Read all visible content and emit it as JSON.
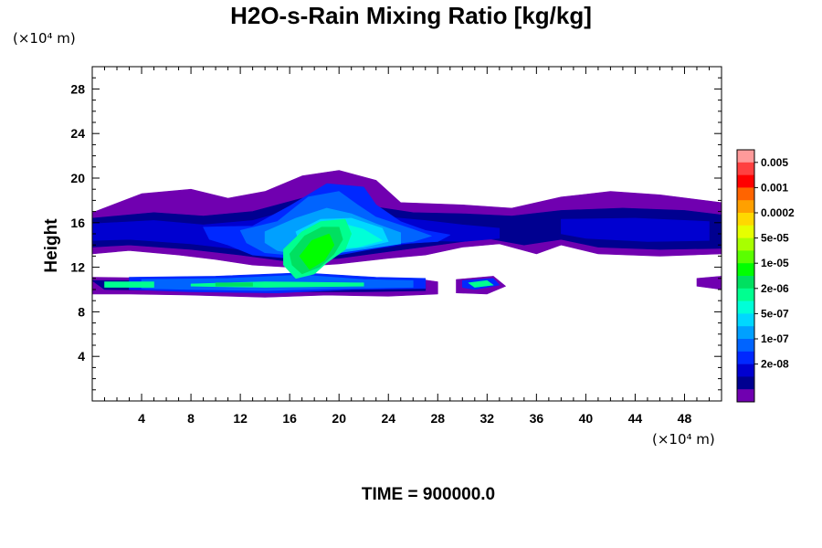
{
  "chart_data": {
    "type": "heatmap",
    "title": "H2O-s-Rain Mixing Ratio [kg/kg]",
    "ylabel": "Height",
    "x_unit_label": "(×10⁴ m)",
    "y_unit_label": "(×10⁴ m)",
    "x_ticks": [
      "4",
      "8",
      "12",
      "16",
      "20",
      "24",
      "28",
      "32",
      "36",
      "40",
      "44",
      "48"
    ],
    "y_ticks": [
      "4",
      "8",
      "12",
      "16",
      "20",
      "24",
      "28"
    ],
    "xlim": [
      0,
      51
    ],
    "ylim": [
      0,
      30
    ],
    "colorbar_labels": [
      "0.005",
      "0.001",
      "0.0002",
      "5e-05",
      "1e-05",
      "2e-06",
      "5e-07",
      "1e-07",
      "2e-08"
    ],
    "colorbar_colors": [
      "#ff9a9a",
      "#ff4040",
      "#ff0000",
      "#ff6400",
      "#ffa000",
      "#ffd800",
      "#e6ff00",
      "#a8ff00",
      "#5aff00",
      "#00ff00",
      "#00e060",
      "#00ff90",
      "#00ffd8",
      "#00d8ff",
      "#00a0ff",
      "#0064ff",
      "#0028ff",
      "#0000d0",
      "#000090",
      "#7000b0"
    ],
    "footer": "TIME = 900000.0",
    "regions": [
      {
        "level": 0,
        "pts": [
          [
            0,
            16.9
          ],
          [
            4,
            18.6
          ],
          [
            8,
            19.0
          ],
          [
            11,
            18.2
          ],
          [
            14,
            18.8
          ],
          [
            17,
            20.2
          ],
          [
            20,
            20.7
          ],
          [
            23,
            19.8
          ],
          [
            25,
            17.8
          ],
          [
            30,
            17.6
          ],
          [
            34,
            17.3
          ],
          [
            38,
            18.3
          ],
          [
            42,
            18.8
          ],
          [
            46,
            18.5
          ],
          [
            51,
            17.8
          ],
          [
            51,
            13.2
          ],
          [
            46,
            13.0
          ],
          [
            41,
            13.2
          ],
          [
            38,
            14.0
          ],
          [
            36,
            13.2
          ],
          [
            33,
            14.1
          ],
          [
            30,
            13.8
          ],
          [
            27,
            13.1
          ],
          [
            24,
            12.8
          ],
          [
            20,
            12.3
          ],
          [
            16,
            12.0
          ],
          [
            13,
            12.2
          ],
          [
            10,
            12.7
          ],
          [
            7,
            13.1
          ],
          [
            3,
            13.5
          ],
          [
            0,
            13.2
          ]
        ]
      },
      {
        "level": 0,
        "pts": [
          [
            0,
            11.1
          ],
          [
            8,
            11.0
          ],
          [
            16,
            11.3
          ],
          [
            22,
            10.9
          ],
          [
            26,
            11.0
          ],
          [
            28,
            10.7
          ],
          [
            28,
            9.6
          ],
          [
            24,
            9.4
          ],
          [
            19,
            9.5
          ],
          [
            14,
            9.3
          ],
          [
            8,
            9.5
          ],
          [
            3,
            9.6
          ],
          [
            0,
            9.6
          ]
        ]
      },
      {
        "level": 0,
        "pts": [
          [
            29.5,
            10.9
          ],
          [
            32.5,
            11.2
          ],
          [
            33.5,
            10.3
          ],
          [
            32,
            9.6
          ],
          [
            29.5,
            9.7
          ]
        ]
      },
      {
        "level": 0,
        "pts": [
          [
            49,
            11.0
          ],
          [
            51,
            11.2
          ],
          [
            51,
            10.0
          ],
          [
            49,
            10.3
          ]
        ]
      },
      {
        "level": 1,
        "pts": [
          [
            0,
            16.4
          ],
          [
            5,
            16.9
          ],
          [
            9,
            16.6
          ],
          [
            13,
            17.0
          ],
          [
            17,
            18.2
          ],
          [
            20,
            18.6
          ],
          [
            23,
            17.4
          ],
          [
            26,
            16.9
          ],
          [
            30,
            16.8
          ],
          [
            34,
            16.6
          ],
          [
            38,
            17.1
          ],
          [
            43,
            17.3
          ],
          [
            48,
            17.1
          ],
          [
            51,
            16.7
          ],
          [
            51,
            13.7
          ],
          [
            46,
            13.6
          ],
          [
            41,
            13.8
          ],
          [
            38,
            14.5
          ],
          [
            35,
            14.0
          ],
          [
            32,
            14.6
          ],
          [
            28,
            14.0
          ],
          [
            24,
            13.4
          ],
          [
            20,
            12.8
          ],
          [
            16,
            12.5
          ],
          [
            12,
            13.1
          ],
          [
            8,
            13.6
          ],
          [
            3,
            14.0
          ],
          [
            0,
            13.8
          ]
        ]
      },
      {
        "level": 1,
        "pts": [
          [
            0,
            10.8
          ],
          [
            8,
            10.8
          ],
          [
            16,
            11.0
          ],
          [
            22,
            10.6
          ],
          [
            27,
            10.6
          ],
          [
            27,
            9.9
          ],
          [
            22,
            9.8
          ],
          [
            16,
            9.8
          ],
          [
            8,
            9.9
          ],
          [
            1,
            10.0
          ]
        ]
      },
      {
        "level": 2,
        "pts": [
          [
            0,
            15.9
          ],
          [
            5,
            16.2
          ],
          [
            9,
            15.8
          ],
          [
            13,
            16.2
          ],
          [
            17,
            17.4
          ],
          [
            20,
            17.8
          ],
          [
            23,
            16.6
          ],
          [
            27,
            16.2
          ],
          [
            30,
            15.8
          ],
          [
            33,
            15.5
          ],
          [
            33,
            14.6
          ],
          [
            30,
            14.3
          ],
          [
            27,
            14.4
          ],
          [
            24,
            13.8
          ],
          [
            20,
            13.3
          ],
          [
            16,
            13.1
          ],
          [
            12,
            13.6
          ],
          [
            8,
            14.1
          ],
          [
            3,
            14.5
          ],
          [
            0,
            14.4
          ]
        ]
      },
      {
        "level": 2,
        "pts": [
          [
            38,
            16.3
          ],
          [
            44,
            16.4
          ],
          [
            50,
            16.1
          ],
          [
            50,
            14.4
          ],
          [
            45,
            14.3
          ],
          [
            40,
            14.6
          ],
          [
            38,
            15.0
          ]
        ]
      },
      {
        "level": 3,
        "pts": [
          [
            9,
            15.6
          ],
          [
            13,
            15.7
          ],
          [
            16,
            17.5
          ],
          [
            19,
            19.5
          ],
          [
            22,
            19.2
          ],
          [
            23,
            17.6
          ],
          [
            25,
            16.1
          ],
          [
            27,
            15.3
          ],
          [
            29,
            14.9
          ],
          [
            28,
            14.3
          ],
          [
            25,
            14.1
          ],
          [
            22,
            13.5
          ],
          [
            19,
            12.9
          ],
          [
            16,
            12.8
          ],
          [
            13,
            13.1
          ],
          [
            11,
            14.0
          ],
          [
            9.5,
            14.5
          ]
        ]
      },
      {
        "level": 3,
        "pts": [
          [
            3,
            11.1
          ],
          [
            10,
            11.2
          ],
          [
            17,
            11.5
          ],
          [
            23,
            11.1
          ],
          [
            27,
            11.0
          ],
          [
            27,
            10.1
          ],
          [
            21,
            10.0
          ],
          [
            15,
            9.7
          ],
          [
            8,
            9.8
          ],
          [
            3,
            10.0
          ]
        ]
      },
      {
        "level": 3,
        "pts": [
          [
            30,
            10.8
          ],
          [
            32.5,
            11.0
          ],
          [
            33,
            10.4
          ],
          [
            31,
            10.0
          ],
          [
            30,
            10.2
          ]
        ]
      },
      {
        "level": 4,
        "pts": [
          [
            12,
            15.3
          ],
          [
            15,
            16.1
          ],
          [
            17.5,
            18.3
          ],
          [
            20,
            18.8
          ],
          [
            21.5,
            17.6
          ],
          [
            23,
            16.5
          ],
          [
            26,
            15.4
          ],
          [
            27.5,
            14.8
          ],
          [
            26,
            14.3
          ],
          [
            23,
            13.9
          ],
          [
            20,
            13.3
          ],
          [
            17,
            13.0
          ],
          [
            14,
            13.3
          ],
          [
            12.5,
            14.2
          ]
        ]
      },
      {
        "level": 4,
        "pts": [
          [
            4,
            10.9
          ],
          [
            11,
            11.0
          ],
          [
            17,
            11.3
          ],
          [
            22,
            10.9
          ],
          [
            26,
            10.8
          ],
          [
            26,
            10.2
          ],
          [
            20,
            10.1
          ],
          [
            14,
            9.9
          ],
          [
            8,
            10.0
          ],
          [
            4,
            10.1
          ]
        ]
      },
      {
        "level": 5,
        "pts": [
          [
            14,
            15.2
          ],
          [
            16.5,
            16.4
          ],
          [
            19,
            17.3
          ],
          [
            21,
            16.8
          ],
          [
            23,
            15.9
          ],
          [
            25,
            15.1
          ],
          [
            25,
            14.1
          ],
          [
            22.5,
            13.7
          ],
          [
            20,
            13.3
          ],
          [
            17,
            13.1
          ],
          [
            15,
            13.5
          ],
          [
            14,
            14.2
          ]
        ]
      },
      {
        "level": 6,
        "pts": [
          [
            16.5,
            15.2
          ],
          [
            18.5,
            16.3
          ],
          [
            21,
            16.4
          ],
          [
            23.5,
            15.5
          ],
          [
            24,
            14.3
          ],
          [
            22,
            13.8
          ],
          [
            19,
            13.4
          ],
          [
            17,
            13.6
          ]
        ]
      },
      {
        "level": 7,
        "pts": [
          [
            18,
            15.4
          ],
          [
            20,
            16.0
          ],
          [
            22,
            15.4
          ],
          [
            23.5,
            14.4
          ],
          [
            21.5,
            13.8
          ],
          [
            19,
            13.6
          ],
          [
            18,
            14.2
          ]
        ]
      },
      {
        "level": 8,
        "pts": [
          [
            15.5,
            13.6
          ],
          [
            17,
            15.2
          ],
          [
            18.5,
            16.1
          ],
          [
            20.5,
            16.3
          ],
          [
            21,
            15.0
          ],
          [
            20.5,
            13.6
          ],
          [
            19,
            12.4
          ],
          [
            18,
            11.4
          ],
          [
            16.5,
            11.0
          ],
          [
            15.5,
            12.2
          ]
        ]
      },
      {
        "level": 8,
        "pts": [
          [
            1,
            10.7
          ],
          [
            5,
            10.7
          ],
          [
            5,
            10.2
          ],
          [
            1,
            10.2
          ]
        ]
      },
      {
        "level": 8,
        "pts": [
          [
            8,
            10.5
          ],
          [
            14,
            10.7
          ],
          [
            22,
            10.6
          ],
          [
            22,
            10.3
          ],
          [
            14,
            10.2
          ],
          [
            8,
            10.3
          ]
        ]
      },
      {
        "level": 8,
        "pts": [
          [
            30.5,
            10.6
          ],
          [
            32,
            10.8
          ],
          [
            32.5,
            10.4
          ],
          [
            31,
            10.2
          ]
        ]
      },
      {
        "level": 9,
        "pts": [
          [
            16,
            13.2
          ],
          [
            17.2,
            14.8
          ],
          [
            18.6,
            15.6
          ],
          [
            20,
            15.6
          ],
          [
            20.3,
            14.5
          ],
          [
            19.6,
            13.2
          ],
          [
            18.4,
            12.0
          ],
          [
            17,
            11.4
          ],
          [
            16.2,
            12.2
          ]
        ]
      },
      {
        "level": 9,
        "pts": [
          [
            10,
            10.6
          ],
          [
            13,
            10.6
          ],
          [
            13,
            10.3
          ],
          [
            10,
            10.3
          ]
        ]
      },
      {
        "level": 10,
        "pts": [
          [
            16.8,
            13.0
          ],
          [
            17.8,
            14.4
          ],
          [
            19.2,
            15.0
          ],
          [
            19.6,
            14.0
          ],
          [
            18.8,
            12.6
          ],
          [
            17.6,
            11.8
          ]
        ]
      }
    ]
  }
}
